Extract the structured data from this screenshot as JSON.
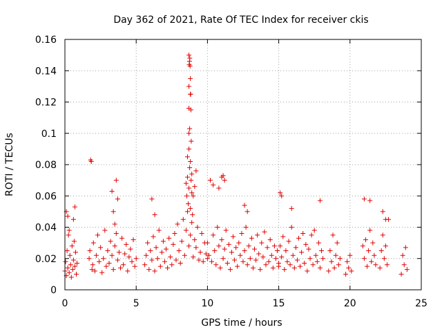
{
  "chart_data": {
    "type": "scatter",
    "title": "Day 362 of 2021, Rate Of TEC Index for receiver ckis",
    "xlabel": "GPS time / hours",
    "ylabel": "ROTI / TECUs",
    "xlim": [
      0,
      25
    ],
    "ylim": [
      0,
      0.16
    ],
    "x_ticks": [
      "0",
      "5",
      "10",
      "15",
      "20",
      "25"
    ],
    "y_ticks": [
      "0",
      "0.02",
      "0.04",
      "0.06",
      "0.08",
      "0.1",
      "0.12",
      "0.14",
      "0.16"
    ],
    "grid": true,
    "marker": "plus",
    "color": "#e00000",
    "series": [
      {
        "x": [
          0.0,
          0.05,
          0.1,
          0.15,
          0.2,
          0.25,
          0.3,
          0.35,
          0.4,
          0.45,
          0.5,
          0.55,
          0.6,
          0.65,
          0.7,
          0.75,
          0.8,
          0.85,
          0.1,
          0.2,
          0.3,
          0.6,
          0.7,
          1.8,
          1.85,
          1.9,
          1.7,
          1.75,
          1.95,
          2.0,
          2.1,
          2.2,
          2.3,
          2.4,
          2.5,
          2.6,
          2.7,
          2.8,
          2.9,
          3.0,
          3.1,
          3.2,
          3.3,
          3.4,
          3.5,
          3.6,
          3.7,
          3.8,
          3.9,
          4.0,
          4.1,
          4.2,
          4.3,
          4.4,
          4.5,
          4.6,
          4.7,
          4.8,
          4.9,
          5.0,
          3.3,
          3.4,
          3.6,
          3.7,
          3.5,
          5.6,
          5.7,
          5.8,
          5.9,
          6.0,
          6.1,
          6.2,
          6.3,
          6.4,
          6.5,
          6.6,
          6.7,
          6.8,
          6.9,
          7.0,
          7.1,
          7.2,
          7.3,
          7.4,
          7.5,
          7.6,
          7.7,
          7.8,
          7.9,
          8.0,
          8.1,
          8.2,
          8.3,
          8.4,
          8.5,
          8.6,
          8.7,
          8.8,
          8.9,
          9.0,
          9.1,
          9.2,
          9.3,
          9.4,
          9.5,
          9.6,
          9.7,
          9.8,
          9.9,
          10.0,
          6.1,
          6.3,
          8.5,
          8.55,
          8.6,
          8.65,
          8.7,
          8.75,
          8.8,
          8.85,
          8.9,
          8.95,
          9.0,
          9.1,
          9.2,
          8.6,
          8.7,
          8.8,
          8.9,
          8.7,
          8.75,
          8.7,
          8.8,
          8.7,
          8.72,
          8.74,
          8.76,
          8.78,
          8.8,
          8.82,
          8.84,
          8.86,
          8.7,
          10.0,
          10.1,
          10.2,
          10.3,
          10.4,
          10.5,
          10.6,
          10.7,
          10.8,
          10.9,
          11.0,
          11.1,
          11.2,
          11.3,
          11.4,
          11.5,
          11.6,
          11.7,
          11.8,
          11.9,
          12.0,
          12.1,
          12.2,
          12.3,
          12.4,
          12.5,
          12.6,
          12.7,
          12.8,
          12.9,
          13.0,
          13.1,
          13.2,
          13.3,
          13.4,
          13.5,
          13.6,
          13.7,
          13.8,
          13.9,
          14.0,
          14.1,
          14.2,
          14.3,
          14.4,
          14.5,
          14.6,
          14.7,
          14.8,
          14.9,
          15.0,
          10.4,
          10.8,
          11.0,
          11.1,
          11.2,
          12.6,
          12.8,
          15.0,
          15.1,
          15.2,
          15.3,
          15.4,
          15.5,
          15.6,
          15.7,
          15.8,
          15.9,
          16.0,
          16.1,
          16.2,
          16.3,
          16.4,
          16.5,
          16.6,
          16.7,
          16.8,
          16.9,
          17.0,
          17.1,
          17.2,
          17.3,
          17.4,
          17.5,
          17.6,
          17.7,
          17.8,
          17.9,
          18.0,
          18.1,
          15.1,
          15.2,
          15.9,
          17.9,
          18.5,
          18.6,
          18.7,
          18.8,
          18.9,
          19.0,
          19.1,
          19.2,
          19.3,
          19.7,
          19.8,
          19.9,
          20.0,
          20.1,
          20.9,
          21.0,
          21.1,
          21.2,
          21.3,
          21.4,
          21.5,
          21.6,
          21.7,
          21.8,
          22.1,
          22.2,
          22.3,
          22.4,
          22.5,
          22.6,
          22.7,
          23.6,
          23.7,
          23.8,
          23.9,
          24.0,
          21.0,
          21.4,
          22.3,
          22.5
        ],
        "y": [
          0.012,
          0.018,
          0.009,
          0.025,
          0.014,
          0.035,
          0.011,
          0.022,
          0.016,
          0.008,
          0.028,
          0.013,
          0.019,
          0.031,
          0.015,
          0.024,
          0.01,
          0.017,
          0.05,
          0.047,
          0.038,
          0.045,
          0.053,
          0.083,
          0.082,
          0.013,
          0.02,
          0.025,
          0.016,
          0.03,
          0.012,
          0.022,
          0.035,
          0.018,
          0.027,
          0.011,
          0.02,
          0.038,
          0.015,
          0.025,
          0.017,
          0.031,
          0.022,
          0.013,
          0.028,
          0.036,
          0.019,
          0.024,
          0.014,
          0.033,
          0.016,
          0.023,
          0.029,
          0.012,
          0.021,
          0.026,
          0.018,
          0.032,
          0.015,
          0.02,
          0.063,
          0.05,
          0.07,
          0.058,
          0.042,
          0.016,
          0.022,
          0.03,
          0.013,
          0.025,
          0.019,
          0.034,
          0.012,
          0.027,
          0.02,
          0.038,
          0.015,
          0.024,
          0.031,
          0.018,
          0.026,
          0.014,
          0.033,
          0.021,
          0.016,
          0.029,
          0.036,
          0.019,
          0.042,
          0.025,
          0.017,
          0.031,
          0.045,
          0.022,
          0.038,
          0.05,
          0.028,
          0.035,
          0.043,
          0.021,
          0.032,
          0.027,
          0.04,
          0.019,
          0.024,
          0.036,
          0.018,
          0.03,
          0.023,
          0.02,
          0.058,
          0.048,
          0.068,
          0.06,
          0.072,
          0.055,
          0.065,
          0.078,
          0.052,
          0.07,
          0.062,
          0.048,
          0.06,
          0.066,
          0.076,
          0.085,
          0.09,
          0.082,
          0.074,
          0.1,
          0.103,
          0.116,
          0.125,
          0.13,
          0.144,
          0.146,
          0.148,
          0.143,
          0.135,
          0.125,
          0.115,
          0.095,
          0.15,
          0.03,
          0.022,
          0.07,
          0.018,
          0.035,
          0.025,
          0.016,
          0.04,
          0.028,
          0.014,
          0.032,
          0.02,
          0.026,
          0.038,
          0.017,
          0.029,
          0.013,
          0.024,
          0.034,
          0.019,
          0.027,
          0.015,
          0.03,
          0.022,
          0.036,
          0.018,
          0.025,
          0.04,
          0.016,
          0.028,
          0.02,
          0.033,
          0.014,
          0.026,
          0.019,
          0.035,
          0.023,
          0.013,
          0.03,
          0.021,
          0.037,
          0.016,
          0.027,
          0.018,
          0.032,
          0.022,
          0.014,
          0.028,
          0.02,
          0.025,
          0.017,
          0.067,
          0.065,
          0.072,
          0.073,
          0.07,
          0.054,
          0.05,
          0.015,
          0.028,
          0.021,
          0.034,
          0.013,
          0.025,
          0.018,
          0.031,
          0.016,
          0.04,
          0.022,
          0.014,
          0.027,
          0.019,
          0.033,
          0.015,
          0.024,
          0.036,
          0.017,
          0.029,
          0.012,
          0.026,
          0.02,
          0.035,
          0.016,
          0.038,
          0.022,
          0.018,
          0.03,
          0.014,
          0.025,
          0.02,
          0.062,
          0.06,
          0.052,
          0.057,
          0.012,
          0.025,
          0.018,
          0.035,
          0.014,
          0.022,
          0.03,
          0.016,
          0.02,
          0.01,
          0.018,
          0.014,
          0.022,
          0.012,
          0.028,
          0.02,
          0.032,
          0.015,
          0.025,
          0.038,
          0.018,
          0.03,
          0.022,
          0.016,
          0.014,
          0.025,
          0.035,
          0.02,
          0.028,
          0.016,
          0.045,
          0.01,
          0.022,
          0.016,
          0.027,
          0.013,
          0.058,
          0.057,
          0.05,
          0.045
        ]
      }
    ]
  }
}
